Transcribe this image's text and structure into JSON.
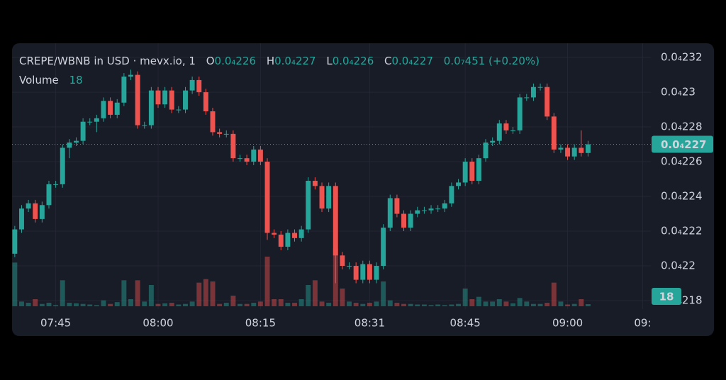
{
  "chart_data": {
    "type": "candlestick",
    "title": "CREPE/WBNB in USD · mevx.io, 1",
    "ohlc_legend": [
      {
        "label": "O",
        "value": "0.0₄226"
      },
      {
        "label": "H",
        "value": "0.0₄227"
      },
      {
        "label": "L",
        "value": "0.0₄226"
      },
      {
        "label": "C",
        "value": "0.0₄227"
      }
    ],
    "change_label": "0.0₇451 (+0.20%)",
    "volume_title": "Volume",
    "last_price_label": "0.0₄227",
    "up_color": "#26a69a",
    "down_color": "#ef5350",
    "grid": true,
    "x": [
      459,
      460,
      461,
      462,
      463,
      464,
      465,
      466,
      467,
      468,
      469,
      470,
      471,
      472,
      473,
      474,
      475,
      476,
      477,
      478,
      479,
      480,
      481,
      482,
      483,
      484,
      485,
      486,
      487,
      488,
      489,
      490,
      491,
      492,
      493,
      494,
      495,
      496,
      497,
      498,
      499,
      500,
      501,
      502,
      503,
      504,
      505,
      506,
      507,
      508,
      509,
      510,
      511,
      512,
      513,
      514,
      515,
      516,
      517,
      518,
      519,
      520,
      521,
      522,
      523,
      524,
      525,
      526,
      527,
      528,
      529,
      530,
      531,
      532,
      533,
      534,
      535,
      536,
      537,
      538,
      539,
      540,
      541,
      542,
      543
    ],
    "open": [
      2.207e-05,
      2.221e-05,
      2.233e-05,
      2.236e-05,
      2.227e-05,
      2.235e-05,
      2.247e-05,
      2.247e-05,
      2.268e-05,
      2.271e-05,
      2.272e-05,
      2.283e-05,
      2.283e-05,
      2.285e-05,
      2.295e-05,
      2.287e-05,
      2.294e-05,
      2.309e-05,
      2.31e-05,
      2.281e-05,
      2.281e-05,
      2.301e-05,
      2.293e-05,
      2.301e-05,
      2.29e-05,
      2.29e-05,
      2.301e-05,
      2.307e-05,
      2.3e-05,
      2.289e-05,
      2.277e-05,
      2.276e-05,
      2.276e-05,
      2.262e-05,
      2.262e-05,
      2.26e-05,
      2.267e-05,
      2.26e-05,
      2.219e-05,
      2.218e-05,
      2.211e-05,
      2.219e-05,
      2.216e-05,
      2.221e-05,
      2.249e-05,
      2.246e-05,
      2.233e-05,
      2.246e-05,
      2.206e-05,
      2.2e-05,
      2.2e-05,
      2.192e-05,
      2.201e-05,
      2.192e-05,
      2.2e-05,
      2.222e-05,
      2.239e-05,
      2.23e-05,
      2.222e-05,
      2.23e-05,
      2.232e-05,
      2.232e-05,
      2.233e-05,
      2.233e-05,
      2.236e-05,
      2.246e-05,
      2.248e-05,
      2.26e-05,
      2.249e-05,
      2.262e-05,
      2.271e-05,
      2.272e-05,
      2.282e-05,
      2.278e-05,
      2.278e-05,
      2.297e-05,
      2.297e-05,
      2.303e-05,
      2.303e-05,
      2.286e-05,
      2.267e-05,
      2.268e-05,
      2.263e-05,
      2.268e-05,
      2.265e-05
    ],
    "high": [
      2.223e-05,
      2.235e-05,
      2.238e-05,
      2.238e-05,
      2.237e-05,
      2.249e-05,
      2.249e-05,
      2.27e-05,
      2.273e-05,
      2.274e-05,
      2.285e-05,
      2.285e-05,
      2.287e-05,
      2.297e-05,
      2.297e-05,
      2.296e-05,
      2.311e-05,
      2.313e-05,
      2.312e-05,
      2.283e-05,
      2.303e-05,
      2.303e-05,
      2.303e-05,
      2.303e-05,
      2.292e-05,
      2.303e-05,
      2.309e-05,
      2.309e-05,
      2.302e-05,
      2.291e-05,
      2.279e-05,
      2.278e-05,
      2.278e-05,
      2.264e-05,
      2.264e-05,
      2.269e-05,
      2.269e-05,
      2.262e-05,
      2.221e-05,
      2.22e-05,
      2.221e-05,
      2.221e-05,
      2.223e-05,
      2.251e-05,
      2.251e-05,
      2.248e-05,
      2.248e-05,
      2.248e-05,
      2.208e-05,
      2.202e-05,
      2.202e-05,
      2.203e-05,
      2.203e-05,
      2.202e-05,
      2.224e-05,
      2.241e-05,
      2.241e-05,
      2.232e-05,
      2.232e-05,
      2.234e-05,
      2.234e-05,
      2.235e-05,
      2.235e-05,
      2.238e-05,
      2.248e-05,
      2.25e-05,
      2.262e-05,
      2.262e-05,
      2.264e-05,
      2.273e-05,
      2.274e-05,
      2.284e-05,
      2.284e-05,
      2.28e-05,
      2.299e-05,
      2.299e-05,
      2.305e-05,
      2.305e-05,
      2.305e-05,
      2.288e-05,
      2.27e-05,
      2.27e-05,
      2.27e-05,
      2.278e-05,
      2.272e-05
    ],
    "low": [
      2.205e-05,
      2.219e-05,
      2.231e-05,
      2.225e-05,
      2.225e-05,
      2.233e-05,
      2.245e-05,
      2.245e-05,
      2.262e-05,
      2.269e-05,
      2.27e-05,
      2.281e-05,
      2.277e-05,
      2.283e-05,
      2.285e-05,
      2.285e-05,
      2.292e-05,
      2.307e-05,
      2.279e-05,
      2.279e-05,
      2.279e-05,
      2.291e-05,
      2.291e-05,
      2.288e-05,
      2.288e-05,
      2.288e-05,
      2.299e-05,
      2.298e-05,
      2.287e-05,
      2.275e-05,
      2.274e-05,
      2.274e-05,
      2.26e-05,
      2.26e-05,
      2.258e-05,
      2.258e-05,
      2.258e-05,
      2.215e-05,
      2.216e-05,
      2.209e-05,
      2.209e-05,
      2.214e-05,
      2.214e-05,
      2.219e-05,
      2.244e-05,
      2.231e-05,
      2.231e-05,
      2.19e-05,
      2.198e-05,
      2.198e-05,
      2.19e-05,
      2.19e-05,
      2.19e-05,
      2.19e-05,
      2.198e-05,
      2.22e-05,
      2.228e-05,
      2.22e-05,
      2.22e-05,
      2.228e-05,
      2.23e-05,
      2.23e-05,
      2.231e-05,
      2.231e-05,
      2.234e-05,
      2.244e-05,
      2.246e-05,
      2.247e-05,
      2.247e-05,
      2.26e-05,
      2.269e-05,
      2.27e-05,
      2.276e-05,
      2.276e-05,
      2.276e-05,
      2.295e-05,
      2.295e-05,
      2.301e-05,
      2.284e-05,
      2.265e-05,
      2.265e-05,
      2.261e-05,
      2.261e-05,
      2.263e-05,
      2.263e-05
    ],
    "close": [
      2.221e-05,
      2.233e-05,
      2.236e-05,
      2.227e-05,
      2.235e-05,
      2.247e-05,
      2.247e-05,
      2.268e-05,
      2.271e-05,
      2.272e-05,
      2.283e-05,
      2.283e-05,
      2.285e-05,
      2.295e-05,
      2.287e-05,
      2.294e-05,
      2.309e-05,
      2.31e-05,
      2.281e-05,
      2.281e-05,
      2.301e-05,
      2.293e-05,
      2.301e-05,
      2.29e-05,
      2.29e-05,
      2.301e-05,
      2.307e-05,
      2.3e-05,
      2.289e-05,
      2.277e-05,
      2.276e-05,
      2.276e-05,
      2.262e-05,
      2.262e-05,
      2.26e-05,
      2.267e-05,
      2.26e-05,
      2.219e-05,
      2.218e-05,
      2.211e-05,
      2.219e-05,
      2.216e-05,
      2.221e-05,
      2.249e-05,
      2.246e-05,
      2.233e-05,
      2.246e-05,
      2.206e-05,
      2.2e-05,
      2.2e-05,
      2.192e-05,
      2.201e-05,
      2.192e-05,
      2.2e-05,
      2.222e-05,
      2.239e-05,
      2.23e-05,
      2.222e-05,
      2.23e-05,
      2.232e-05,
      2.232e-05,
      2.233e-05,
      2.233e-05,
      2.236e-05,
      2.246e-05,
      2.248e-05,
      2.26e-05,
      2.249e-05,
      2.262e-05,
      2.271e-05,
      2.272e-05,
      2.282e-05,
      2.278e-05,
      2.278e-05,
      2.297e-05,
      2.297e-05,
      2.303e-05,
      2.303e-05,
      2.286e-05,
      2.267e-05,
      2.268e-05,
      2.263e-05,
      2.268e-05,
      2.265e-05,
      2.27e-05
    ],
    "volume": [
      370,
      40,
      30,
      60,
      20,
      30,
      10,
      220,
      30,
      25,
      20,
      15,
      10,
      50,
      20,
      35,
      220,
      60,
      220,
      40,
      180,
      20,
      25,
      30,
      15,
      20,
      40,
      200,
      230,
      210,
      20,
      30,
      90,
      20,
      20,
      30,
      40,
      420,
      60,
      60,
      30,
      30,
      60,
      180,
      220,
      40,
      30,
      490,
      150,
      40,
      30,
      20,
      30,
      40,
      210,
      50,
      30,
      20,
      20,
      15,
      15,
      10,
      15,
      10,
      15,
      20,
      150,
      60,
      80,
      40,
      40,
      60,
      40,
      25,
      70,
      40,
      20,
      20,
      30,
      200,
      40,
      15,
      20,
      60,
      18
    ],
    "volume_lim": [
      0,
      1200
    ],
    "xlim": [
      458.6,
      552.2
    ],
    "xticks": [
      {
        "value": 465,
        "label": "07:45"
      },
      {
        "value": 480,
        "label": "08:00"
      },
      {
        "value": 495,
        "label": "08:15"
      },
      {
        "value": 511,
        "label": "08:31"
      },
      {
        "value": 525,
        "label": "08:45"
      },
      {
        "value": 540,
        "label": "09:00"
      },
      {
        "value": 551,
        "label": "09:"
      }
    ],
    "ylim": [
      2.1751e-05,
      2.3282e-05
    ],
    "yticks": [
      {
        "value": 2.32e-05,
        "label": "0.0₄232"
      },
      {
        "value": 2.3e-05,
        "label": "0.0₄23"
      },
      {
        "value": 2.28e-05,
        "label": "0.0₄228"
      },
      {
        "value": 2.26e-05,
        "label": "0.0₄226"
      },
      {
        "value": 2.24e-05,
        "label": "0.0₄224"
      },
      {
        "value": 2.22e-05,
        "label": "0.0₄222"
      },
      {
        "value": 2.2e-05,
        "label": "0.0₄22"
      },
      {
        "value": 2.18e-05,
        "label": "0.0₄218"
      }
    ]
  }
}
